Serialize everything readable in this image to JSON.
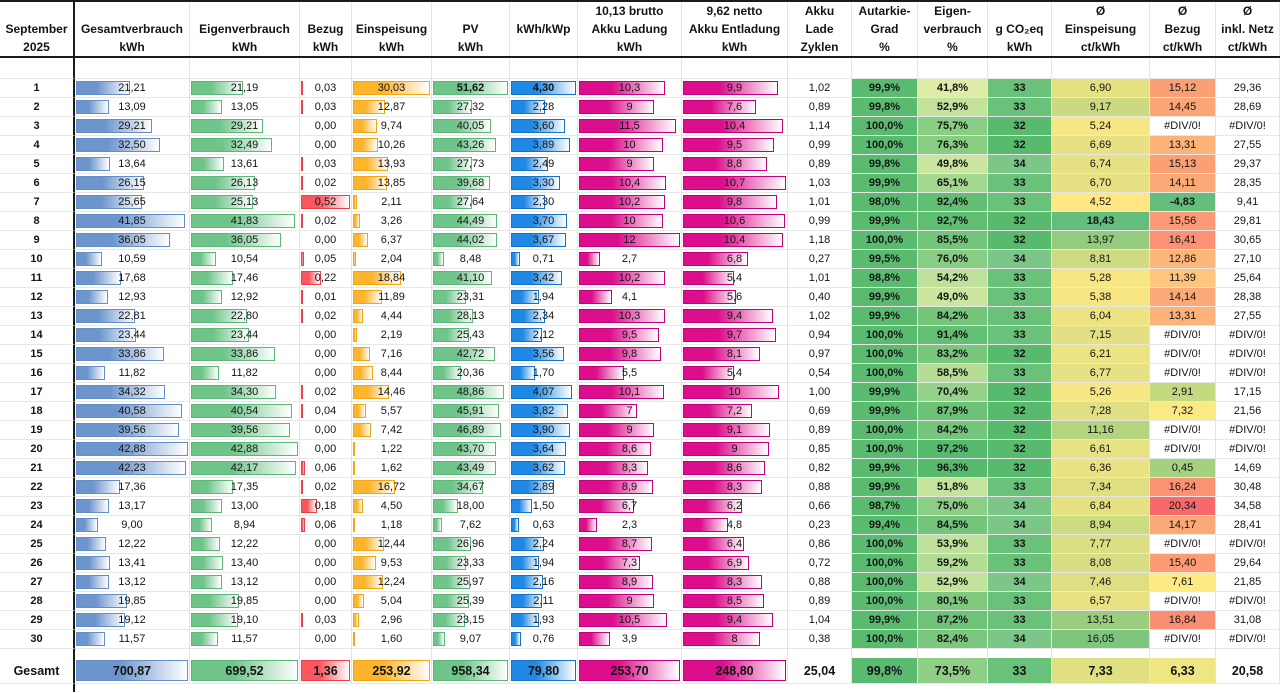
{
  "title": "September 2025 PV-Anlage Monatsübersicht (Tabelle)",
  "header": {
    "columns": [
      {
        "id": "day",
        "lines": [
          "",
          "September",
          "2025"
        ]
      },
      {
        "id": "gesamtverbrauch",
        "lines": [
          "",
          "Gesamtverbrauch",
          "kWh"
        ]
      },
      {
        "id": "eigenverbrauch",
        "lines": [
          "",
          "Eigenverbrauch",
          "kWh"
        ]
      },
      {
        "id": "bezug",
        "lines": [
          "",
          "Bezug",
          "kWh"
        ]
      },
      {
        "id": "einspeisung",
        "lines": [
          "",
          "Einspeisung",
          "kWh"
        ]
      },
      {
        "id": "pv",
        "lines": [
          "",
          "PV",
          "kWh"
        ]
      },
      {
        "id": "kwhkwp",
        "lines": [
          "",
          "kWh/kWp",
          ""
        ]
      },
      {
        "id": "akku_ladung",
        "lines": [
          "10,13 brutto",
          "Akku Ladung",
          "kWh"
        ]
      },
      {
        "id": "akku_entladung",
        "lines": [
          "9,62 netto",
          "Akku Entladung",
          "kWh"
        ]
      },
      {
        "id": "zyklen",
        "lines": [
          "Akku",
          "Lade",
          "Zyklen"
        ]
      },
      {
        "id": "autarkie",
        "lines": [
          "Autarkie-",
          "Grad",
          "%"
        ]
      },
      {
        "id": "eigenquote",
        "lines": [
          "Eigen-",
          "verbrauch",
          "%"
        ]
      },
      {
        "id": "co2",
        "lines": [
          "",
          "g CO₂eq",
          "kWh"
        ]
      },
      {
        "id": "avg_einspeisung",
        "lines": [
          "Ø",
          "Einspeisung",
          "ct/kWh"
        ]
      },
      {
        "id": "avg_bezug",
        "lines": [
          "Ø",
          "Bezug",
          "ct/kWh"
        ]
      },
      {
        "id": "avg_netz",
        "lines": [
          "Ø",
          "inkl. Netz",
          "ct/kWh"
        ]
      }
    ]
  },
  "rows": [
    [
      "1",
      "21,21",
      "21,19",
      "0,03",
      "30,03",
      "51,62",
      "4,30",
      "10,3",
      "9,9",
      "1,02",
      "99,9%",
      "41,8%",
      "33",
      "6,90",
      "15,12",
      "29,36"
    ],
    [
      "2",
      "13,09",
      "13,05",
      "0,03",
      "12,87",
      "27,32",
      "2,28",
      "9",
      "7,6",
      "0,89",
      "99,8%",
      "52,9%",
      "33",
      "9,17",
      "14,45",
      "28,69"
    ],
    [
      "3",
      "29,21",
      "29,21",
      "0,00",
      "9,74",
      "40,05",
      "3,60",
      "11,5",
      "10,4",
      "1,14",
      "100,0%",
      "75,7%",
      "32",
      "5,24",
      "#DIV/0!",
      "#DIV/0!"
    ],
    [
      "4",
      "32,50",
      "32,49",
      "0,00",
      "10,26",
      "43,26",
      "3,89",
      "10",
      "9,5",
      "0,99",
      "100,0%",
      "76,3%",
      "32",
      "6,69",
      "13,31",
      "27,55"
    ],
    [
      "5",
      "13,64",
      "13,61",
      "0,03",
      "13,93",
      "27,73",
      "2,49",
      "9",
      "8,8",
      "0,89",
      "99,8%",
      "49,8%",
      "34",
      "6,74",
      "15,13",
      "29,37"
    ],
    [
      "6",
      "26,15",
      "26,13",
      "0,02",
      "13,85",
      "39,68",
      "3,30",
      "10,4",
      "10,7",
      "1,03",
      "99,9%",
      "65,1%",
      "33",
      "6,70",
      "14,11",
      "28,35"
    ],
    [
      "7",
      "25,65",
      "25,13",
      "0,52",
      "2,11",
      "27,64",
      "2,30",
      "10,2",
      "9,8",
      "1,01",
      "98,0%",
      "92,4%",
      "33",
      "4,52",
      "-4,83",
      "9,41"
    ],
    [
      "8",
      "41,85",
      "41,83",
      "0,02",
      "3,26",
      "44,49",
      "3,70",
      "10",
      "10,6",
      "0,99",
      "99,9%",
      "92,7%",
      "32",
      "18,43",
      "15,56",
      "29,81"
    ],
    [
      "9",
      "36,05",
      "36,05",
      "0,00",
      "6,37",
      "44,02",
      "3,67",
      "12",
      "10,4",
      "1,18",
      "100,0%",
      "85,5%",
      "32",
      "13,97",
      "16,41",
      "30,65"
    ],
    [
      "10",
      "10,59",
      "10,54",
      "0,05",
      "2,04",
      "8,48",
      "0,71",
      "2,7",
      "6,8",
      "0,27",
      "99,5%",
      "76,0%",
      "34",
      "8,81",
      "12,86",
      "27,10"
    ],
    [
      "11",
      "17,68",
      "17,46",
      "0,22",
      "18,84",
      "41,10",
      "3,42",
      "10,2",
      "5,4",
      "1,01",
      "98,8%",
      "54,2%",
      "33",
      "5,28",
      "11,39",
      "25,64"
    ],
    [
      "12",
      "12,93",
      "12,92",
      "0,01",
      "11,89",
      "23,31",
      "1,94",
      "4,1",
      "5,6",
      "0,40",
      "99,9%",
      "49,0%",
      "33",
      "5,38",
      "14,14",
      "28,38"
    ],
    [
      "13",
      "22,81",
      "22,80",
      "0,02",
      "4,44",
      "28,13",
      "2,34",
      "10,3",
      "9,4",
      "1,02",
      "99,9%",
      "84,2%",
      "33",
      "6,04",
      "13,31",
      "27,55"
    ],
    [
      "14",
      "23,44",
      "23,44",
      "0,00",
      "2,19",
      "25,43",
      "2,12",
      "9,5",
      "9,7",
      "0,94",
      "100,0%",
      "91,4%",
      "33",
      "7,15",
      "#DIV/0!",
      "#DIV/0!"
    ],
    [
      "15",
      "33,86",
      "33,86",
      "0,00",
      "7,16",
      "42,72",
      "3,56",
      "9,8",
      "8,1",
      "0,97",
      "100,0%",
      "83,2%",
      "32",
      "6,21",
      "#DIV/0!",
      "#DIV/0!"
    ],
    [
      "16",
      "11,82",
      "11,82",
      "0,00",
      "8,44",
      "20,36",
      "1,70",
      "5,5",
      "5,4",
      "0,54",
      "100,0%",
      "58,5%",
      "33",
      "6,77",
      "#DIV/0!",
      "#DIV/0!"
    ],
    [
      "17",
      "34,32",
      "34,30",
      "0,02",
      "14,46",
      "48,86",
      "4,07",
      "10,1",
      "10",
      "1,00",
      "99,9%",
      "70,4%",
      "32",
      "5,26",
      "2,91",
      "17,15"
    ],
    [
      "18",
      "40,58",
      "40,54",
      "0,04",
      "5,57",
      "45,91",
      "3,82",
      "7",
      "7,2",
      "0,69",
      "99,9%",
      "87,9%",
      "32",
      "7,28",
      "7,32",
      "21,56"
    ],
    [
      "19",
      "39,56",
      "39,56",
      "0,00",
      "7,42",
      "46,89",
      "3,90",
      "9",
      "9,1",
      "0,89",
      "100,0%",
      "84,2%",
      "32",
      "11,16",
      "#DIV/0!",
      "#DIV/0!"
    ],
    [
      "20",
      "42,88",
      "42,88",
      "0,00",
      "1,22",
      "43,70",
      "3,64",
      "8,6",
      "9",
      "0,85",
      "100,0%",
      "97,2%",
      "32",
      "6,61",
      "#DIV/0!",
      "#DIV/0!"
    ],
    [
      "21",
      "42,23",
      "42,17",
      "0,06",
      "1,62",
      "43,49",
      "3,62",
      "8,3",
      "8,6",
      "0,82",
      "99,9%",
      "96,3%",
      "32",
      "6,36",
      "0,45",
      "14,69"
    ],
    [
      "22",
      "17,36",
      "17,35",
      "0,02",
      "16,72",
      "34,67",
      "2,89",
      "8,9",
      "8,3",
      "0,88",
      "99,9%",
      "51,8%",
      "33",
      "7,34",
      "16,24",
      "30,48"
    ],
    [
      "23",
      "13,17",
      "13,00",
      "0,18",
      "4,50",
      "18,00",
      "1,50",
      "6,7",
      "6,2",
      "0,66",
      "98,7%",
      "75,0%",
      "34",
      "6,84",
      "20,34",
      "34,58"
    ],
    [
      "24",
      "9,00",
      "8,94",
      "0,06",
      "1,18",
      "7,62",
      "0,63",
      "2,3",
      "4,8",
      "0,23",
      "99,4%",
      "84,5%",
      "34",
      "8,94",
      "14,17",
      "28,41"
    ],
    [
      "25",
      "12,22",
      "12,22",
      "0,00",
      "12,44",
      "26,96",
      "2,24",
      "8,7",
      "6,4",
      "0,86",
      "100,0%",
      "53,9%",
      "33",
      "7,77",
      "#DIV/0!",
      "#DIV/0!"
    ],
    [
      "26",
      "13,41",
      "13,40",
      "0,00",
      "9,53",
      "23,33",
      "1,94",
      "7,3",
      "6,9",
      "0,72",
      "100,0%",
      "59,2%",
      "33",
      "8,08",
      "15,40",
      "29,64"
    ],
    [
      "27",
      "13,12",
      "13,12",
      "0,00",
      "12,24",
      "25,97",
      "2,16",
      "8,9",
      "8,3",
      "0,88",
      "100,0%",
      "52,9%",
      "34",
      "7,46",
      "7,61",
      "21,85"
    ],
    [
      "28",
      "19,85",
      "19,85",
      "0,00",
      "5,04",
      "25,39",
      "2,11",
      "9",
      "8,5",
      "0,89",
      "100,0%",
      "80,1%",
      "33",
      "6,57",
      "#DIV/0!",
      "#DIV/0!"
    ],
    [
      "29",
      "19,12",
      "19,10",
      "0,03",
      "2,96",
      "23,15",
      "1,93",
      "10,5",
      "9,4",
      "1,04",
      "99,9%",
      "87,2%",
      "33",
      "13,51",
      "16,84",
      "31,08"
    ],
    [
      "30",
      "11,57",
      "11,57",
      "0,00",
      "1,60",
      "9,07",
      "0,76",
      "3,9",
      "8",
      "0,38",
      "100,0%",
      "82,4%",
      "34",
      "16,05",
      "#DIV/0!",
      "#DIV/0!"
    ]
  ],
  "total_row": [
    "Gesamt",
    "700,87",
    "699,52",
    "1,36",
    "253,92",
    "958,34",
    "79,80",
    "253,70",
    "248,80",
    "25,04",
    "99,8%",
    "73,5%",
    "33",
    "7,33",
    "6,33",
    "20,58"
  ],
  "bold_cells": [
    {
      "row": "1",
      "col": "pv"
    },
    {
      "row": "1",
      "col": "kwhkwp"
    },
    {
      "row": "8",
      "col": "avg_einspeisung"
    },
    {
      "row": "7",
      "col": "avg_bezug"
    }
  ],
  "format": {
    "columns": [
      {
        "id": "day",
        "type": "plain",
        "bold": true
      },
      {
        "id": "gesamtverbrauch",
        "type": "bar",
        "fill": "#6D95CD",
        "border": "#638EC6"
      },
      {
        "id": "eigenverbrauch",
        "type": "bar",
        "fill": "#6FC48A",
        "border": "#5BB877"
      },
      {
        "id": "bezug",
        "type": "bar",
        "fill": "#F9565E",
        "border": "#EE4048"
      },
      {
        "id": "einspeisung",
        "type": "bar",
        "fill": "#FCB42C",
        "border": "#F2A60F"
      },
      {
        "id": "pv",
        "type": "bar",
        "fill": "#6FC48A",
        "border": "#5BB877"
      },
      {
        "id": "kwhkwp",
        "type": "bar",
        "fill": "#2089E5",
        "border": "#1472CB"
      },
      {
        "id": "akku_ladung",
        "type": "bar",
        "fill": "#DC0E8B",
        "border": "#C4007C"
      },
      {
        "id": "akku_entladung",
        "type": "bar",
        "fill": "#DC0E8B",
        "border": "#C4007C"
      },
      {
        "id": "zyklen",
        "type": "plain"
      },
      {
        "id": "autarkie",
        "type": "scale-fixed",
        "bold": true,
        "color": "#5ABB70"
      },
      {
        "id": "eigenquote",
        "type": "scale2",
        "bold": true,
        "from": "#DEECA8",
        "to": "#55BA6D"
      },
      {
        "id": "co2",
        "type": "scale2",
        "bold": true,
        "from": "#58BA6D",
        "to": "#7CC787"
      },
      {
        "id": "avg_einspeisung",
        "type": "scale2",
        "from": "#FFE884",
        "to": "#63BE7B"
      },
      {
        "id": "avg_bezug",
        "type": "scale3",
        "low": "#63BE7B",
        "mid": "#FFEB84",
        "high": "#F8696B"
      },
      {
        "id": "avg_netz",
        "type": "plain"
      }
    ]
  }
}
